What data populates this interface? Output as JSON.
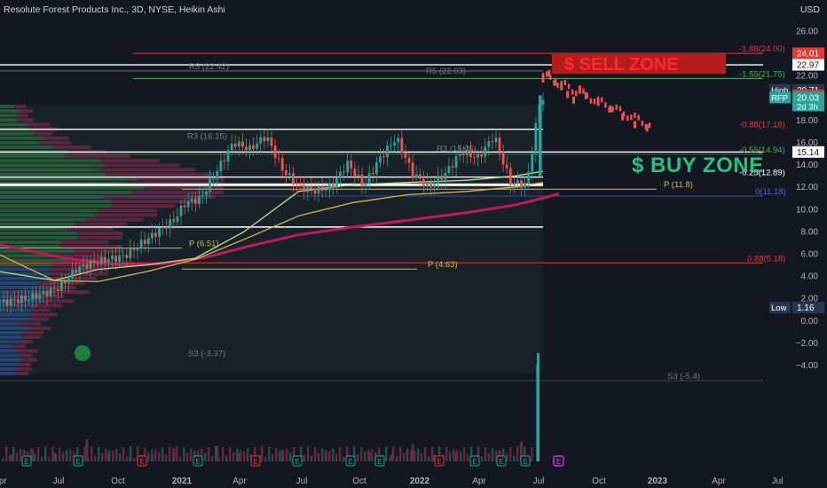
{
  "header": {
    "title": "Resolute Forest Products Inc., 3D, NYSE, Heikin Ashi",
    "currency": "USD"
  },
  "zones": {
    "sell": "$ SELL ZONE",
    "buy": "$ BUY ZONE"
  },
  "colors": {
    "background": "#131722",
    "up": "#26a69a",
    "down": "#ef5350",
    "red_line": "#c2185b",
    "ma_green": "#b6e388",
    "ma_yellow": "#d4b84a",
    "white_line": "#ffffff",
    "sell_zone": "#b71c1c",
    "buy_zone": "#26c281"
  },
  "chart_data": {
    "type": "candlestick",
    "ylim": [
      -6.2,
      27.2
    ],
    "x_ticks": [
      "Apr",
      "Jul",
      "Oct",
      "2021",
      "Apr",
      "Jul",
      "Oct",
      "2022",
      "Apr",
      "Jul",
      "Oct",
      "2023",
      "Apr",
      "Jul"
    ],
    "y_ticks": [
      "26.00",
      "24.00",
      "22.00",
      "20.00",
      "18.00",
      "16.00",
      "14.00",
      "12.00",
      "10.00",
      "8.00",
      "6.00",
      "4.00",
      "2.00",
      "0.00",
      "−2.00",
      "−4.00"
    ],
    "price_tags": [
      {
        "label": "",
        "value": "24.01",
        "color": "#e53935"
      },
      {
        "label": "",
        "value": "22.97",
        "color": "#ffffff"
      },
      {
        "label": "High",
        "value": "20.71",
        "color": "#2a3550"
      },
      {
        "label": "",
        "value": "20.23",
        "color": "#e53935"
      },
      {
        "label": "RFP",
        "value": "20.03",
        "sub": "2d 3h",
        "color": "#26a69a"
      },
      {
        "label": "",
        "value": "15.14",
        "color": "#ffffff"
      },
      {
        "label": "Low",
        "value": "1.16",
        "color": "#2a3550"
      }
    ],
    "level_labels": [
      {
        "text": "-1.88(24.00)",
        "y": 24.0,
        "color": "#e53935"
      },
      {
        "text": "-1.55(21.75)",
        "y": 21.75,
        "color": "#4caf50"
      },
      {
        "text": "-0.88(17.18)",
        "y": 17.18,
        "color": "#e53935"
      },
      {
        "text": "-0.55(14.94)",
        "y": 14.94,
        "color": "#4caf50"
      },
      {
        "text": "-0.25(12.89)",
        "y": 12.89,
        "color": "#ffffff"
      },
      {
        "text": "0(11.18)",
        "y": 11.18,
        "color": "#5c6bc0"
      },
      {
        "text": "0.88(5.18)",
        "y": 5.18,
        "color": "#e53935"
      },
      {
        "text": "R5 (22.42)",
        "y": 22.42,
        "color": "#787b86"
      },
      {
        "text": "R5 (22.03)",
        "y": 22.03,
        "color": "#787b86"
      },
      {
        "text": "R3 (16.15)",
        "y": 16.15,
        "color": "#787b86"
      },
      {
        "text": "R3 (15.05)",
        "y": 15.05,
        "color": "#787b86"
      },
      {
        "text": "P (11.8)",
        "y": 11.8,
        "color": "#d4b84a"
      },
      {
        "text": "P (6.51)",
        "y": 6.51,
        "color": "#d4b84a"
      },
      {
        "text": "P (4.63)",
        "y": 4.63,
        "color": "#d4b84a"
      },
      {
        "text": "S3 (-3.37)",
        "y": -3.37,
        "color": "#787b86"
      },
      {
        "text": "S3 (-5.4)",
        "y": -5.4,
        "color": "#787b86"
      }
    ],
    "trend_points": [
      {
        "x": 0.0,
        "y": 1.6
      },
      {
        "x": 0.05,
        "y": 2.0
      },
      {
        "x": 0.08,
        "y": 2.4
      },
      {
        "x": 0.11,
        "y": 3.0
      },
      {
        "x": 0.14,
        "y": 4.6
      },
      {
        "x": 0.17,
        "y": 5.2
      },
      {
        "x": 0.2,
        "y": 5.5
      },
      {
        "x": 0.23,
        "y": 5.8
      },
      {
        "x": 0.26,
        "y": 6.9
      },
      {
        "x": 0.29,
        "y": 8.0
      },
      {
        "x": 0.32,
        "y": 9.0
      },
      {
        "x": 0.34,
        "y": 10.5
      },
      {
        "x": 0.37,
        "y": 11.0
      },
      {
        "x": 0.4,
        "y": 13.5
      },
      {
        "x": 0.43,
        "y": 16.0
      },
      {
        "x": 0.46,
        "y": 15.4
      },
      {
        "x": 0.49,
        "y": 16.6
      },
      {
        "x": 0.52,
        "y": 13.6
      },
      {
        "x": 0.55,
        "y": 12.0
      },
      {
        "x": 0.58,
        "y": 11.7
      },
      {
        "x": 0.61,
        "y": 12.0
      },
      {
        "x": 0.64,
        "y": 14.1
      },
      {
        "x": 0.67,
        "y": 12.1
      },
      {
        "x": 0.7,
        "y": 14.6
      },
      {
        "x": 0.73,
        "y": 16.4
      },
      {
        "x": 0.76,
        "y": 13.2
      },
      {
        "x": 0.79,
        "y": 12.0
      },
      {
        "x": 0.82,
        "y": 13.2
      },
      {
        "x": 0.85,
        "y": 15.2
      },
      {
        "x": 0.88,
        "y": 14.6
      },
      {
        "x": 0.91,
        "y": 16.6
      },
      {
        "x": 0.94,
        "y": 12.4
      },
      {
        "x": 0.97,
        "y": 12.2
      },
      {
        "x": 0.995,
        "y": 20.0
      }
    ],
    "projection_points": [
      {
        "x": 0.0,
        "y": 21.7
      },
      {
        "x": 0.05,
        "y": 22.2
      },
      {
        "x": 0.1,
        "y": 21.4
      },
      {
        "x": 0.15,
        "y": 21.0
      },
      {
        "x": 0.2,
        "y": 20.3
      },
      {
        "x": 0.25,
        "y": 19.8
      },
      {
        "x": 0.3,
        "y": 20.8
      },
      {
        "x": 0.35,
        "y": 20.2
      },
      {
        "x": 0.45,
        "y": 19.6
      },
      {
        "x": 0.55,
        "y": 19.0
      },
      {
        "x": 0.65,
        "y": 18.3
      },
      {
        "x": 0.75,
        "y": 17.6
      },
      {
        "x": 0.85,
        "y": 17.3
      }
    ],
    "ma_red": [
      {
        "x": 0.0,
        "y": 6.8
      },
      {
        "x": 0.12,
        "y": 5.6
      },
      {
        "x": 0.22,
        "y": 5.0
      },
      {
        "x": 0.3,
        "y": 5.1
      },
      {
        "x": 0.38,
        "y": 5.7
      },
      {
        "x": 0.46,
        "y": 6.7
      },
      {
        "x": 0.55,
        "y": 7.7
      },
      {
        "x": 0.65,
        "y": 8.4
      },
      {
        "x": 0.75,
        "y": 9.0
      },
      {
        "x": 0.86,
        "y": 9.7
      },
      {
        "x": 0.95,
        "y": 10.4
      },
      {
        "x": 1.0,
        "y": 11.0
      }
    ],
    "ma_yellow": [
      {
        "x": 0.0,
        "y": 5.9
      },
      {
        "x": 0.1,
        "y": 3.6
      },
      {
        "x": 0.18,
        "y": 3.5
      },
      {
        "x": 0.27,
        "y": 4.4
      },
      {
        "x": 0.36,
        "y": 5.5
      },
      {
        "x": 0.45,
        "y": 7.3
      },
      {
        "x": 0.55,
        "y": 9.4
      },
      {
        "x": 0.65,
        "y": 10.6
      },
      {
        "x": 0.75,
        "y": 11.3
      },
      {
        "x": 0.86,
        "y": 11.6
      },
      {
        "x": 0.95,
        "y": 12.0
      },
      {
        "x": 1.0,
        "y": 12.4
      }
    ],
    "ma_green": [
      {
        "x": 0.0,
        "y": 4.4
      },
      {
        "x": 0.1,
        "y": 3.6
      },
      {
        "x": 0.18,
        "y": 4.6
      },
      {
        "x": 0.27,
        "y": 5.0
      },
      {
        "x": 0.36,
        "y": 5.6
      },
      {
        "x": 0.45,
        "y": 8.0
      },
      {
        "x": 0.55,
        "y": 11.6
      },
      {
        "x": 0.65,
        "y": 12.2
      },
      {
        "x": 0.75,
        "y": 12.4
      },
      {
        "x": 0.86,
        "y": 12.6
      },
      {
        "x": 0.95,
        "y": 13.0
      },
      {
        "x": 1.0,
        "y": 13.4
      }
    ],
    "volume": [
      {
        "x": 0.02,
        "v": 0.3
      },
      {
        "x": 0.06,
        "v": 0.55
      },
      {
        "x": 0.1,
        "v": 0.4
      },
      {
        "x": 0.14,
        "v": 0.3
      },
      {
        "x": 0.16,
        "v": 1.0
      },
      {
        "x": 0.2,
        "v": 0.35
      },
      {
        "x": 0.24,
        "v": 0.2
      },
      {
        "x": 0.28,
        "v": 0.3
      },
      {
        "x": 0.32,
        "v": 0.6
      },
      {
        "x": 0.36,
        "v": 0.3
      },
      {
        "x": 0.4,
        "v": 0.7
      },
      {
        "x": 0.44,
        "v": 0.4
      },
      {
        "x": 0.48,
        "v": 0.3
      },
      {
        "x": 0.52,
        "v": 0.5
      },
      {
        "x": 0.56,
        "v": 0.3
      },
      {
        "x": 0.6,
        "v": 0.4
      },
      {
        "x": 0.64,
        "v": 0.3
      },
      {
        "x": 0.68,
        "v": 0.4
      },
      {
        "x": 0.72,
        "v": 0.3
      },
      {
        "x": 0.76,
        "v": 0.8
      },
      {
        "x": 0.8,
        "v": 0.3
      },
      {
        "x": 0.84,
        "v": 0.4
      },
      {
        "x": 0.88,
        "v": 0.3
      },
      {
        "x": 0.92,
        "v": 0.5
      },
      {
        "x": 0.96,
        "v": 0.9
      },
      {
        "x": 0.99,
        "v": 4.4
      }
    ]
  }
}
